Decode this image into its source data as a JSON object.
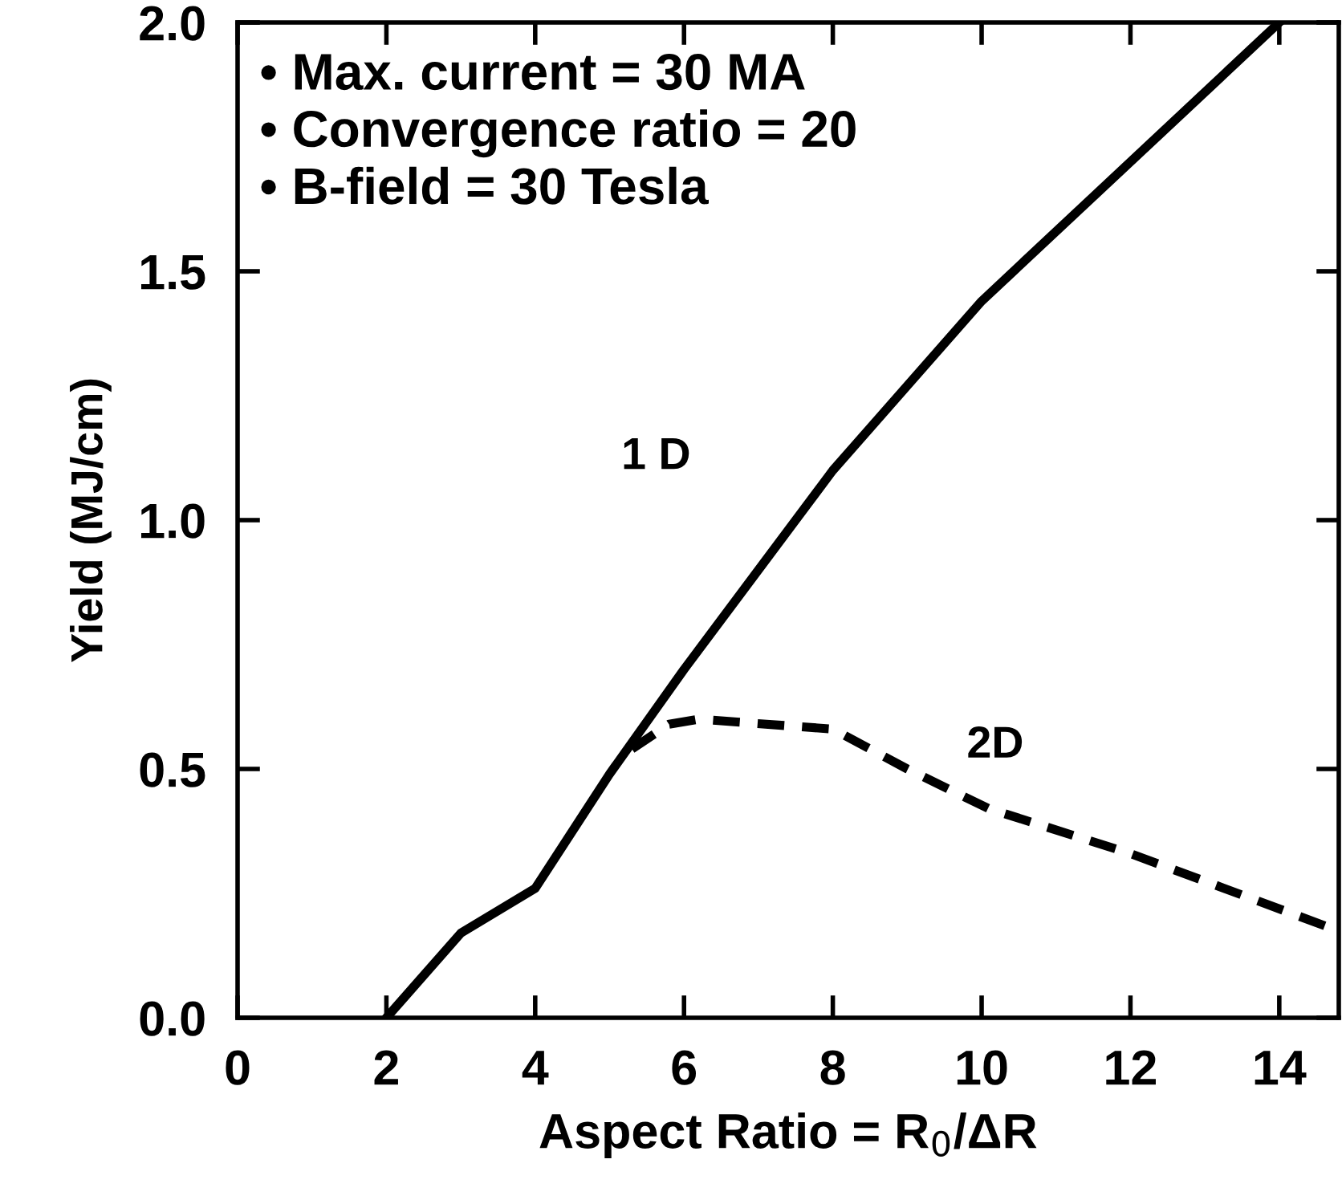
{
  "chart_data": {
    "type": "line",
    "xlabel": "Aspect Ratio = R$_{0}$/ΔR",
    "ylabel": "Yield (MJ/cm)",
    "xlim": [
      0,
      14.8
    ],
    "ylim": [
      0,
      2.0
    ],
    "xticks": [
      0,
      2,
      4,
      6,
      8,
      10,
      12,
      14
    ],
    "yticks": [
      {
        "value": 0,
        "label": "0.0"
      },
      {
        "value": 0.5,
        "label": "0.5"
      },
      {
        "value": 1.0,
        "label": "1.0"
      },
      {
        "value": 1.5,
        "label": "1.5"
      },
      {
        "value": 2.0,
        "label": "2.0"
      }
    ],
    "grid": false,
    "legend": false,
    "series": [
      {
        "color": "#000000",
        "line_style": "solid",
        "x": [
          2,
          3,
          4,
          5,
          6,
          8,
          10,
          14
        ],
        "values": [
          0,
          0.17,
          0.26,
          0.49,
          0.7,
          1.1,
          1.44,
          2.0
        ]
      },
      {
        "color": "#000000",
        "line_style": "dashed",
        "x": [
          5.3,
          5.8,
          6.2,
          8,
          9,
          10.1,
          12,
          14.7
        ],
        "values": [
          0.54,
          0.59,
          0.6,
          0.58,
          0.5,
          0.42,
          0.33,
          0.18
        ]
      }
    ],
    "annotations": [
      "• Max. current = 30 MA\n• Convergence ratio = 20\n• B-field = 30 Tesla",
      "1 D",
      "2D"
    ]
  }
}
